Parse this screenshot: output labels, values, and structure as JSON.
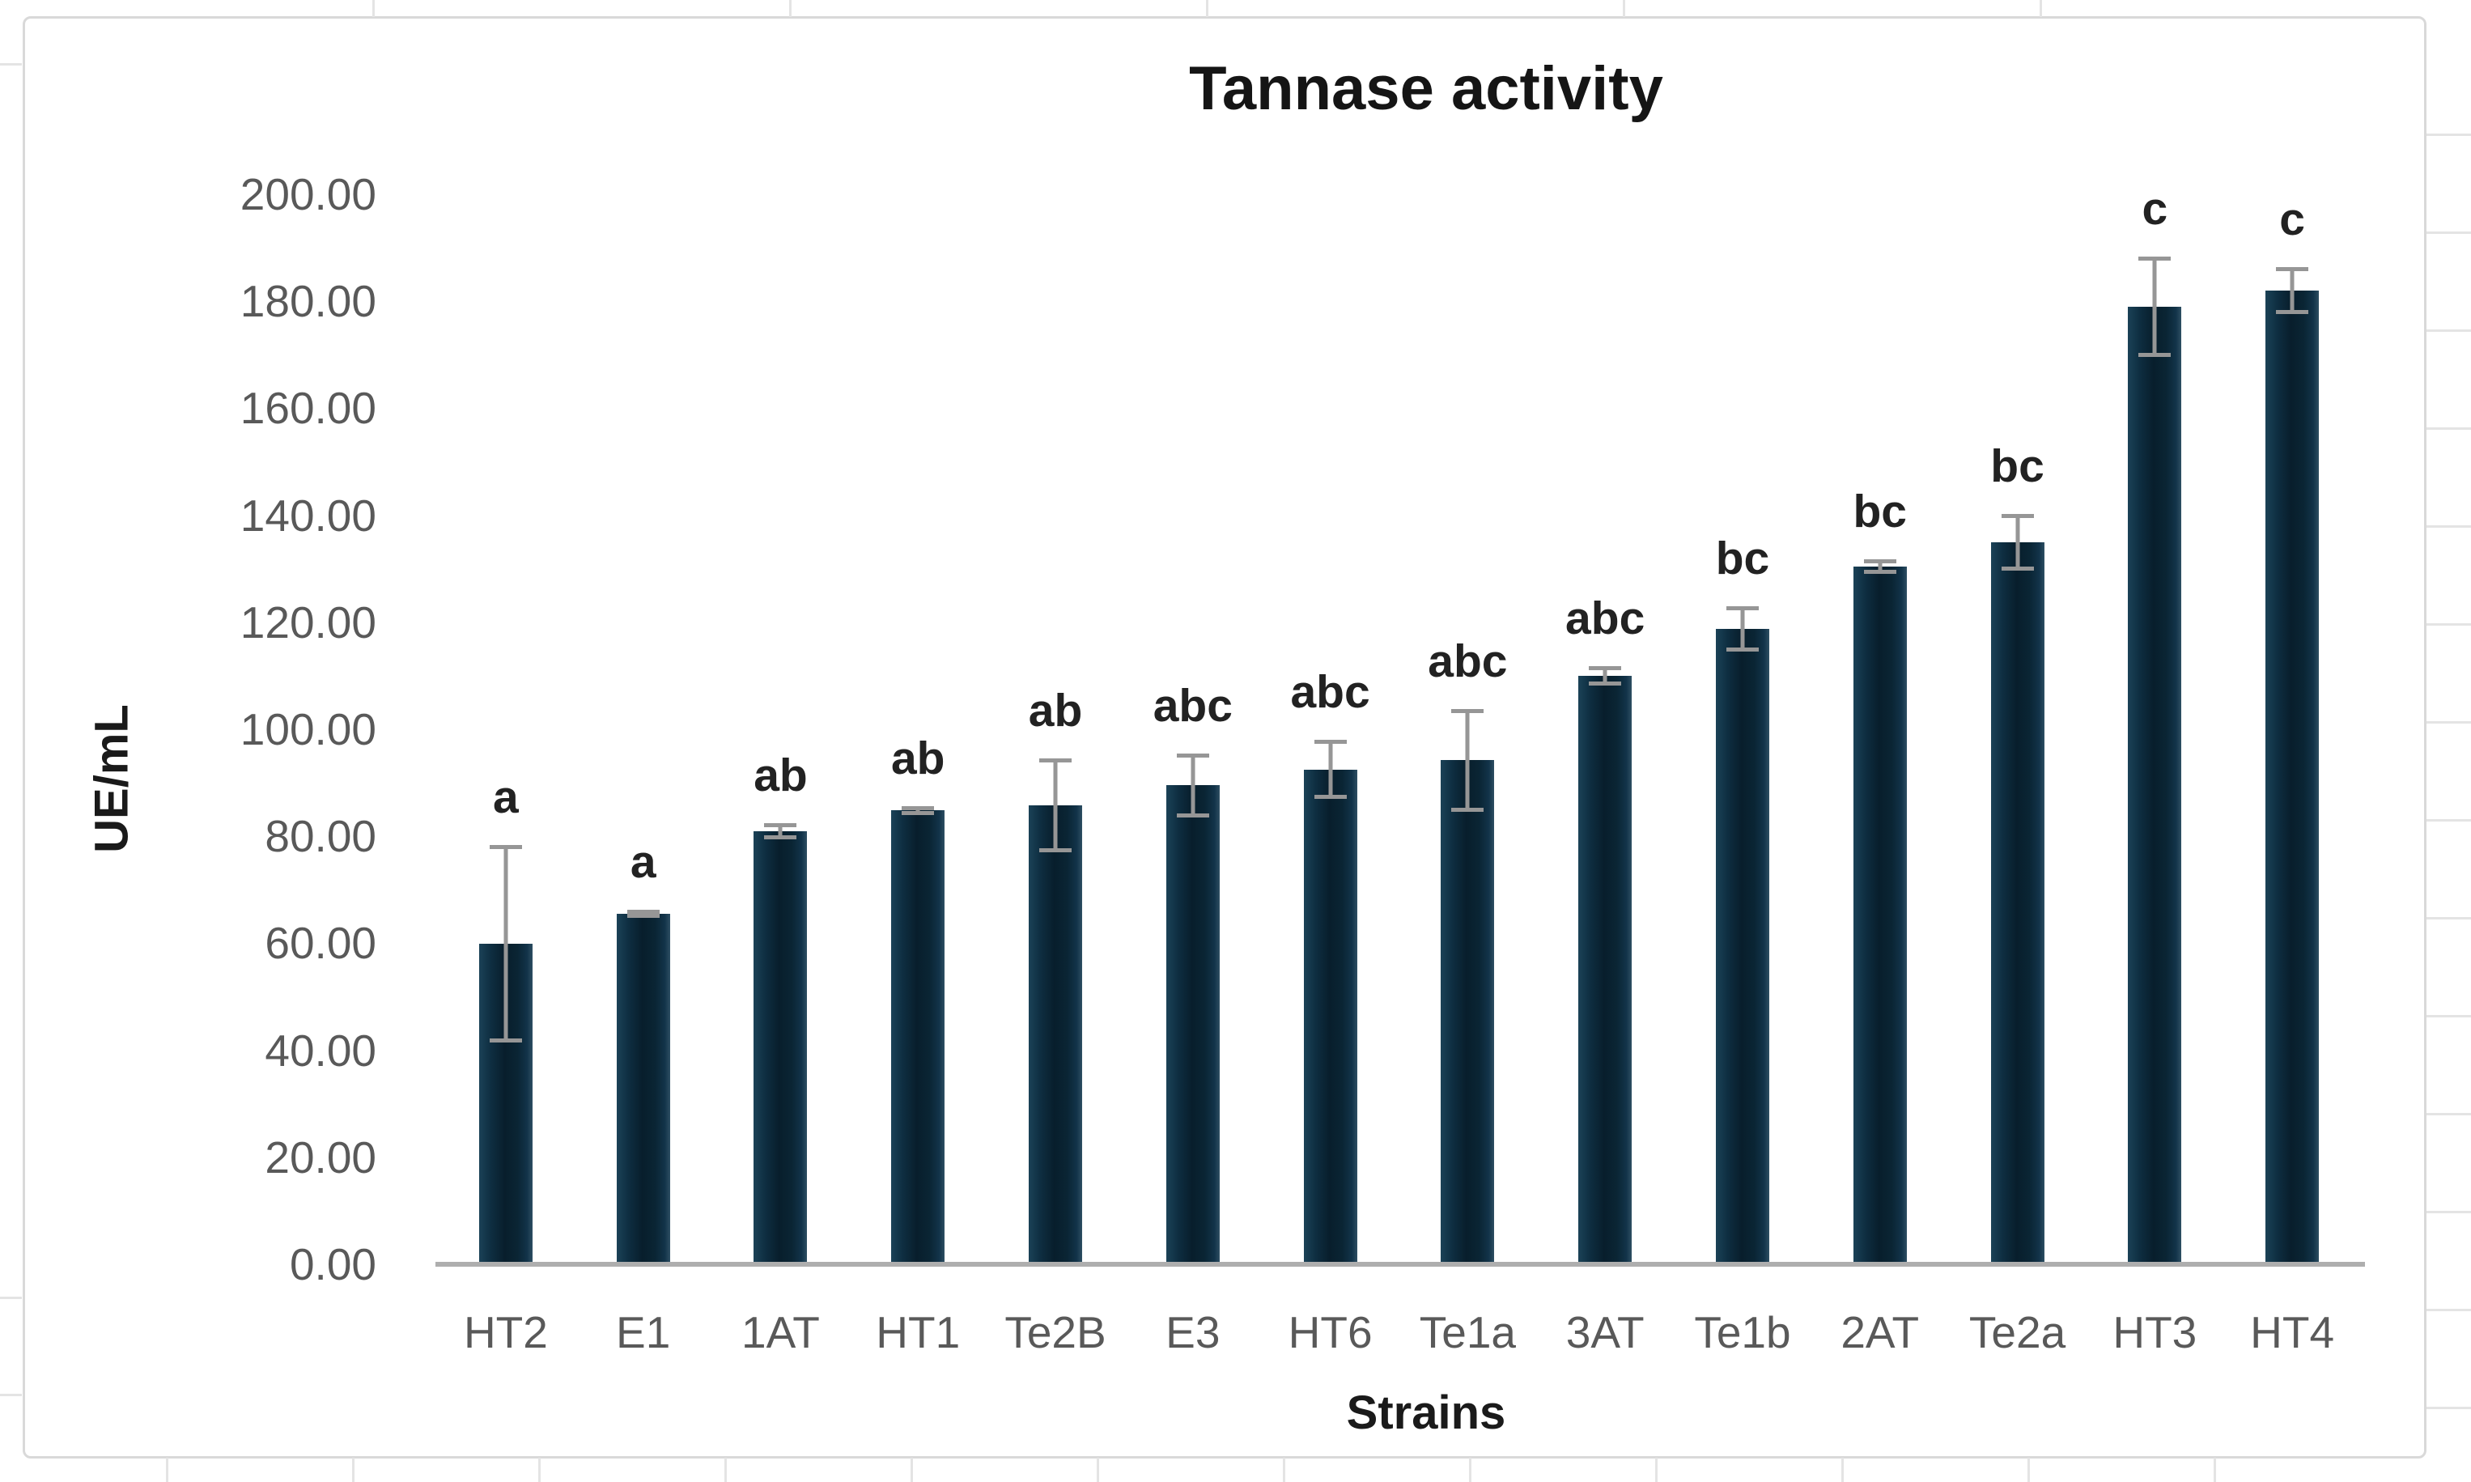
{
  "chart_data": {
    "type": "bar",
    "title": "Tannase activity",
    "xlabel": "Strains",
    "ylabel": "UE/mL",
    "ylim": [
      0,
      200
    ],
    "ytick_step": 20,
    "ytick_labels": [
      "0.00",
      "20.00",
      "40.00",
      "60.00",
      "80.00",
      "100.00",
      "120.00",
      "140.00",
      "160.00",
      "180.00",
      "200.00"
    ],
    "grid": false,
    "legend_position": "none",
    "categories": [
      "HT2",
      "E1",
      "1AT",
      "HT1",
      "Te2B",
      "E3",
      "HT6",
      "Te1a",
      "3AT",
      "Te1b",
      "2AT",
      "Te2a",
      "HT3",
      "HT4"
    ],
    "series": [
      {
        "name": "Tannase activity (UE/mL)",
        "values": [
          59.9,
          65.5,
          81.0,
          84.8,
          85.8,
          89.5,
          92.5,
          94.2,
          110.0,
          118.8,
          130.4,
          134.9,
          179.0,
          182.0
        ],
        "errors": [
          18.5,
          0.8,
          1.5,
          0.9,
          8.8,
          6.0,
          5.5,
          9.6,
          1.8,
          4.2,
          1.3,
          5.3,
          9.4,
          4.4
        ]
      }
    ],
    "significance_letters": [
      "a",
      "a",
      "ab",
      "ab",
      "ab",
      "abc",
      "abc",
      "abc",
      "abc",
      "bc",
      "bc",
      "bc",
      "c",
      "c"
    ],
    "colors": {
      "bar": "#0b2433",
      "error_bar": "#969696",
      "axis_line": "#aeaeae",
      "tick_label": "#595959",
      "title_text": "#151515",
      "chart_border": "#d9d9d9",
      "sheet_gridline": "#e4e4e4"
    }
  },
  "background_ticks": {
    "top_x": [
      460,
      975,
      1490,
      2005,
      2520
    ],
    "bottom_x": [
      205,
      435,
      665,
      895,
      1125,
      1355,
      1585,
      1815,
      2045,
      2275,
      2505,
      2735
    ],
    "left_y": [
      78,
      1602,
      1722
    ],
    "right_y": [
      165,
      286,
      407,
      528,
      649,
      770,
      891,
      1012,
      1133,
      1254,
      1375,
      1496,
      1617,
      1738
    ]
  }
}
